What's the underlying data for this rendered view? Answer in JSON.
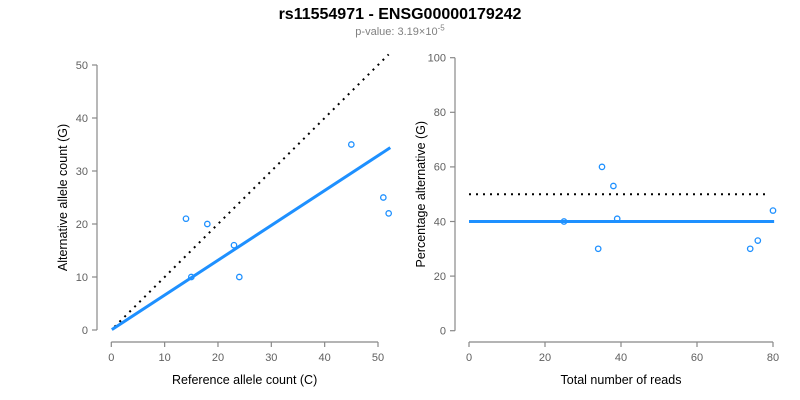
{
  "header": {
    "title": "rs11554971 - ENSG00000179242",
    "p_value_text": "p-value: 3.19×10",
    "p_value_exponent": "-5"
  },
  "colors": {
    "point_blue": "#1E90FF",
    "line_blue": "#1E90FF",
    "line_black": "#000000",
    "axis_gray": "#888888",
    "tick_label_gray": "#606060",
    "axis_title_black": "#000000",
    "subtitle_gray": "#808080",
    "title_black": "#000000"
  },
  "chart_data": [
    {
      "type": "scatter",
      "title": "",
      "xlabel": "Reference allele count (C)",
      "ylabel": "Alternative allele count (G)",
      "xlim": [
        0,
        50
      ],
      "ylim": [
        0,
        50
      ],
      "xticks": [
        0,
        10,
        20,
        30,
        40,
        50
      ],
      "yticks": [
        0,
        10,
        20,
        30,
        40,
        50
      ],
      "grid": false,
      "legend": false,
      "points": [
        [
          14,
          21
        ],
        [
          15,
          10
        ],
        [
          18,
          20
        ],
        [
          23,
          16
        ],
        [
          24,
          10
        ],
        [
          45,
          35
        ],
        [
          51,
          25
        ],
        [
          52,
          22
        ]
      ],
      "lines": [
        {
          "name": "identity-line",
          "style": "dotted",
          "color": "#000000",
          "from": [
            0.6,
            0.6
          ],
          "to": [
            52,
            52
          ]
        },
        {
          "name": "regression-line",
          "style": "solid",
          "color": "#1E90FF",
          "from": [
            0.1,
            0.07
          ],
          "to": [
            52.3,
            34.4
          ]
        }
      ]
    },
    {
      "type": "scatter",
      "title": "",
      "xlabel": "Total number of reads",
      "ylabel": "Percentage alternative (G)",
      "xlim": [
        0,
        80
      ],
      "ylim": [
        0,
        100
      ],
      "xticks": [
        0,
        20,
        40,
        60,
        80
      ],
      "yticks": [
        0,
        20,
        40,
        60,
        80,
        100
      ],
      "grid": false,
      "legend": false,
      "points": [
        [
          25,
          40
        ],
        [
          34,
          30
        ],
        [
          35,
          60
        ],
        [
          38,
          53
        ],
        [
          39,
          41
        ],
        [
          74,
          30
        ],
        [
          76,
          33
        ],
        [
          80,
          44
        ]
      ],
      "lines": [
        {
          "name": "fifty-percent-line",
          "style": "dotted",
          "color": "#000000",
          "from": [
            0,
            50
          ],
          "to": [
            78.5,
            50
          ]
        },
        {
          "name": "mean-percentage-line",
          "style": "solid",
          "color": "#1E90FF",
          "from": [
            0,
            40
          ],
          "to": [
            80.3,
            40
          ]
        }
      ]
    }
  ]
}
